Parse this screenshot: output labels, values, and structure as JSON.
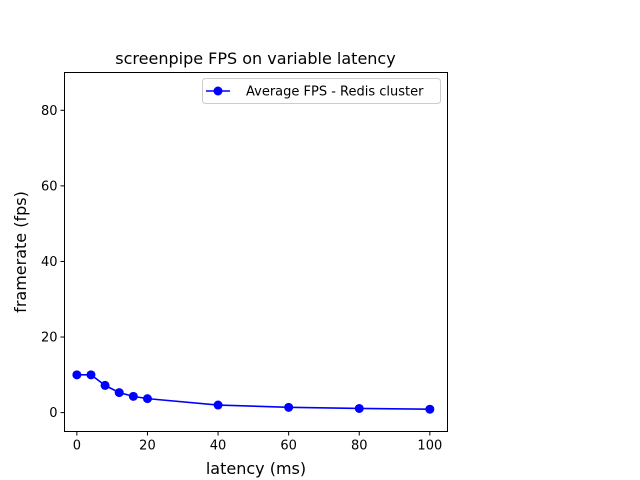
{
  "chart_data": {
    "type": "line",
    "title": "screenpipe FPS on variable latency",
    "xlabel": "latency (ms)",
    "ylabel": "framerate (fps)",
    "xlim": [
      -3.5,
      105
    ],
    "ylim": [
      -5,
      90
    ],
    "xticks": [
      0,
      20,
      40,
      60,
      80,
      100
    ],
    "yticks": [
      0,
      20,
      40,
      60,
      80
    ],
    "grid": false,
    "legend_position": "top-right",
    "series": [
      {
        "name": "Average FPS - Redis cluster",
        "color": "#0000ff",
        "marker": "circle",
        "x": [
          0,
          4,
          8,
          12,
          16,
          20,
          40,
          60,
          80,
          100
        ],
        "y": [
          10.0,
          10.0,
          7.2,
          5.3,
          4.3,
          3.7,
          2.0,
          1.4,
          1.1,
          0.9
        ]
      }
    ]
  }
}
